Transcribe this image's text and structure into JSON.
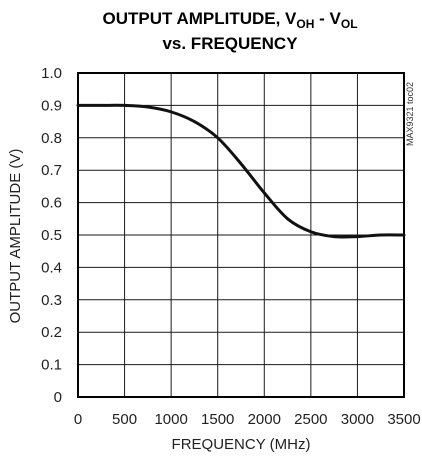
{
  "chart_data": {
    "type": "line",
    "title_line1_main": "OUTPUT AMPLITUDE, V",
    "title_sub_oh": "OH",
    "title_sep": " - V",
    "title_sub_ol": "OL",
    "title_line2": "vs. FREQUENCY",
    "xlabel": "FREQUENCY (MHz)",
    "ylabel": "OUTPUT AMPLITUDE (V)",
    "side_note": "MAX9321 toc02",
    "xlim": [
      0,
      3500
    ],
    "ylim": [
      0,
      1.0
    ],
    "x_ticks": [
      "0",
      "500",
      "1000",
      "1500",
      "2000",
      "2500",
      "3000",
      "3500"
    ],
    "y_ticks": [
      "0",
      "0.1",
      "0.2",
      "0.3",
      "0.4",
      "0.5",
      "0.6",
      "0.7",
      "0.8",
      "0.9",
      "1.0"
    ],
    "grid": true,
    "series": [
      {
        "x": [
          0,
          250,
          500,
          750,
          1000,
          1250,
          1500,
          1750,
          2000,
          2250,
          2500,
          2750,
          3000,
          3250,
          3500
        ],
        "y": [
          0.9,
          0.9,
          0.9,
          0.895,
          0.88,
          0.85,
          0.8,
          0.72,
          0.63,
          0.55,
          0.51,
          0.495,
          0.495,
          0.5,
          0.5
        ],
        "color": "#111111"
      }
    ]
  }
}
